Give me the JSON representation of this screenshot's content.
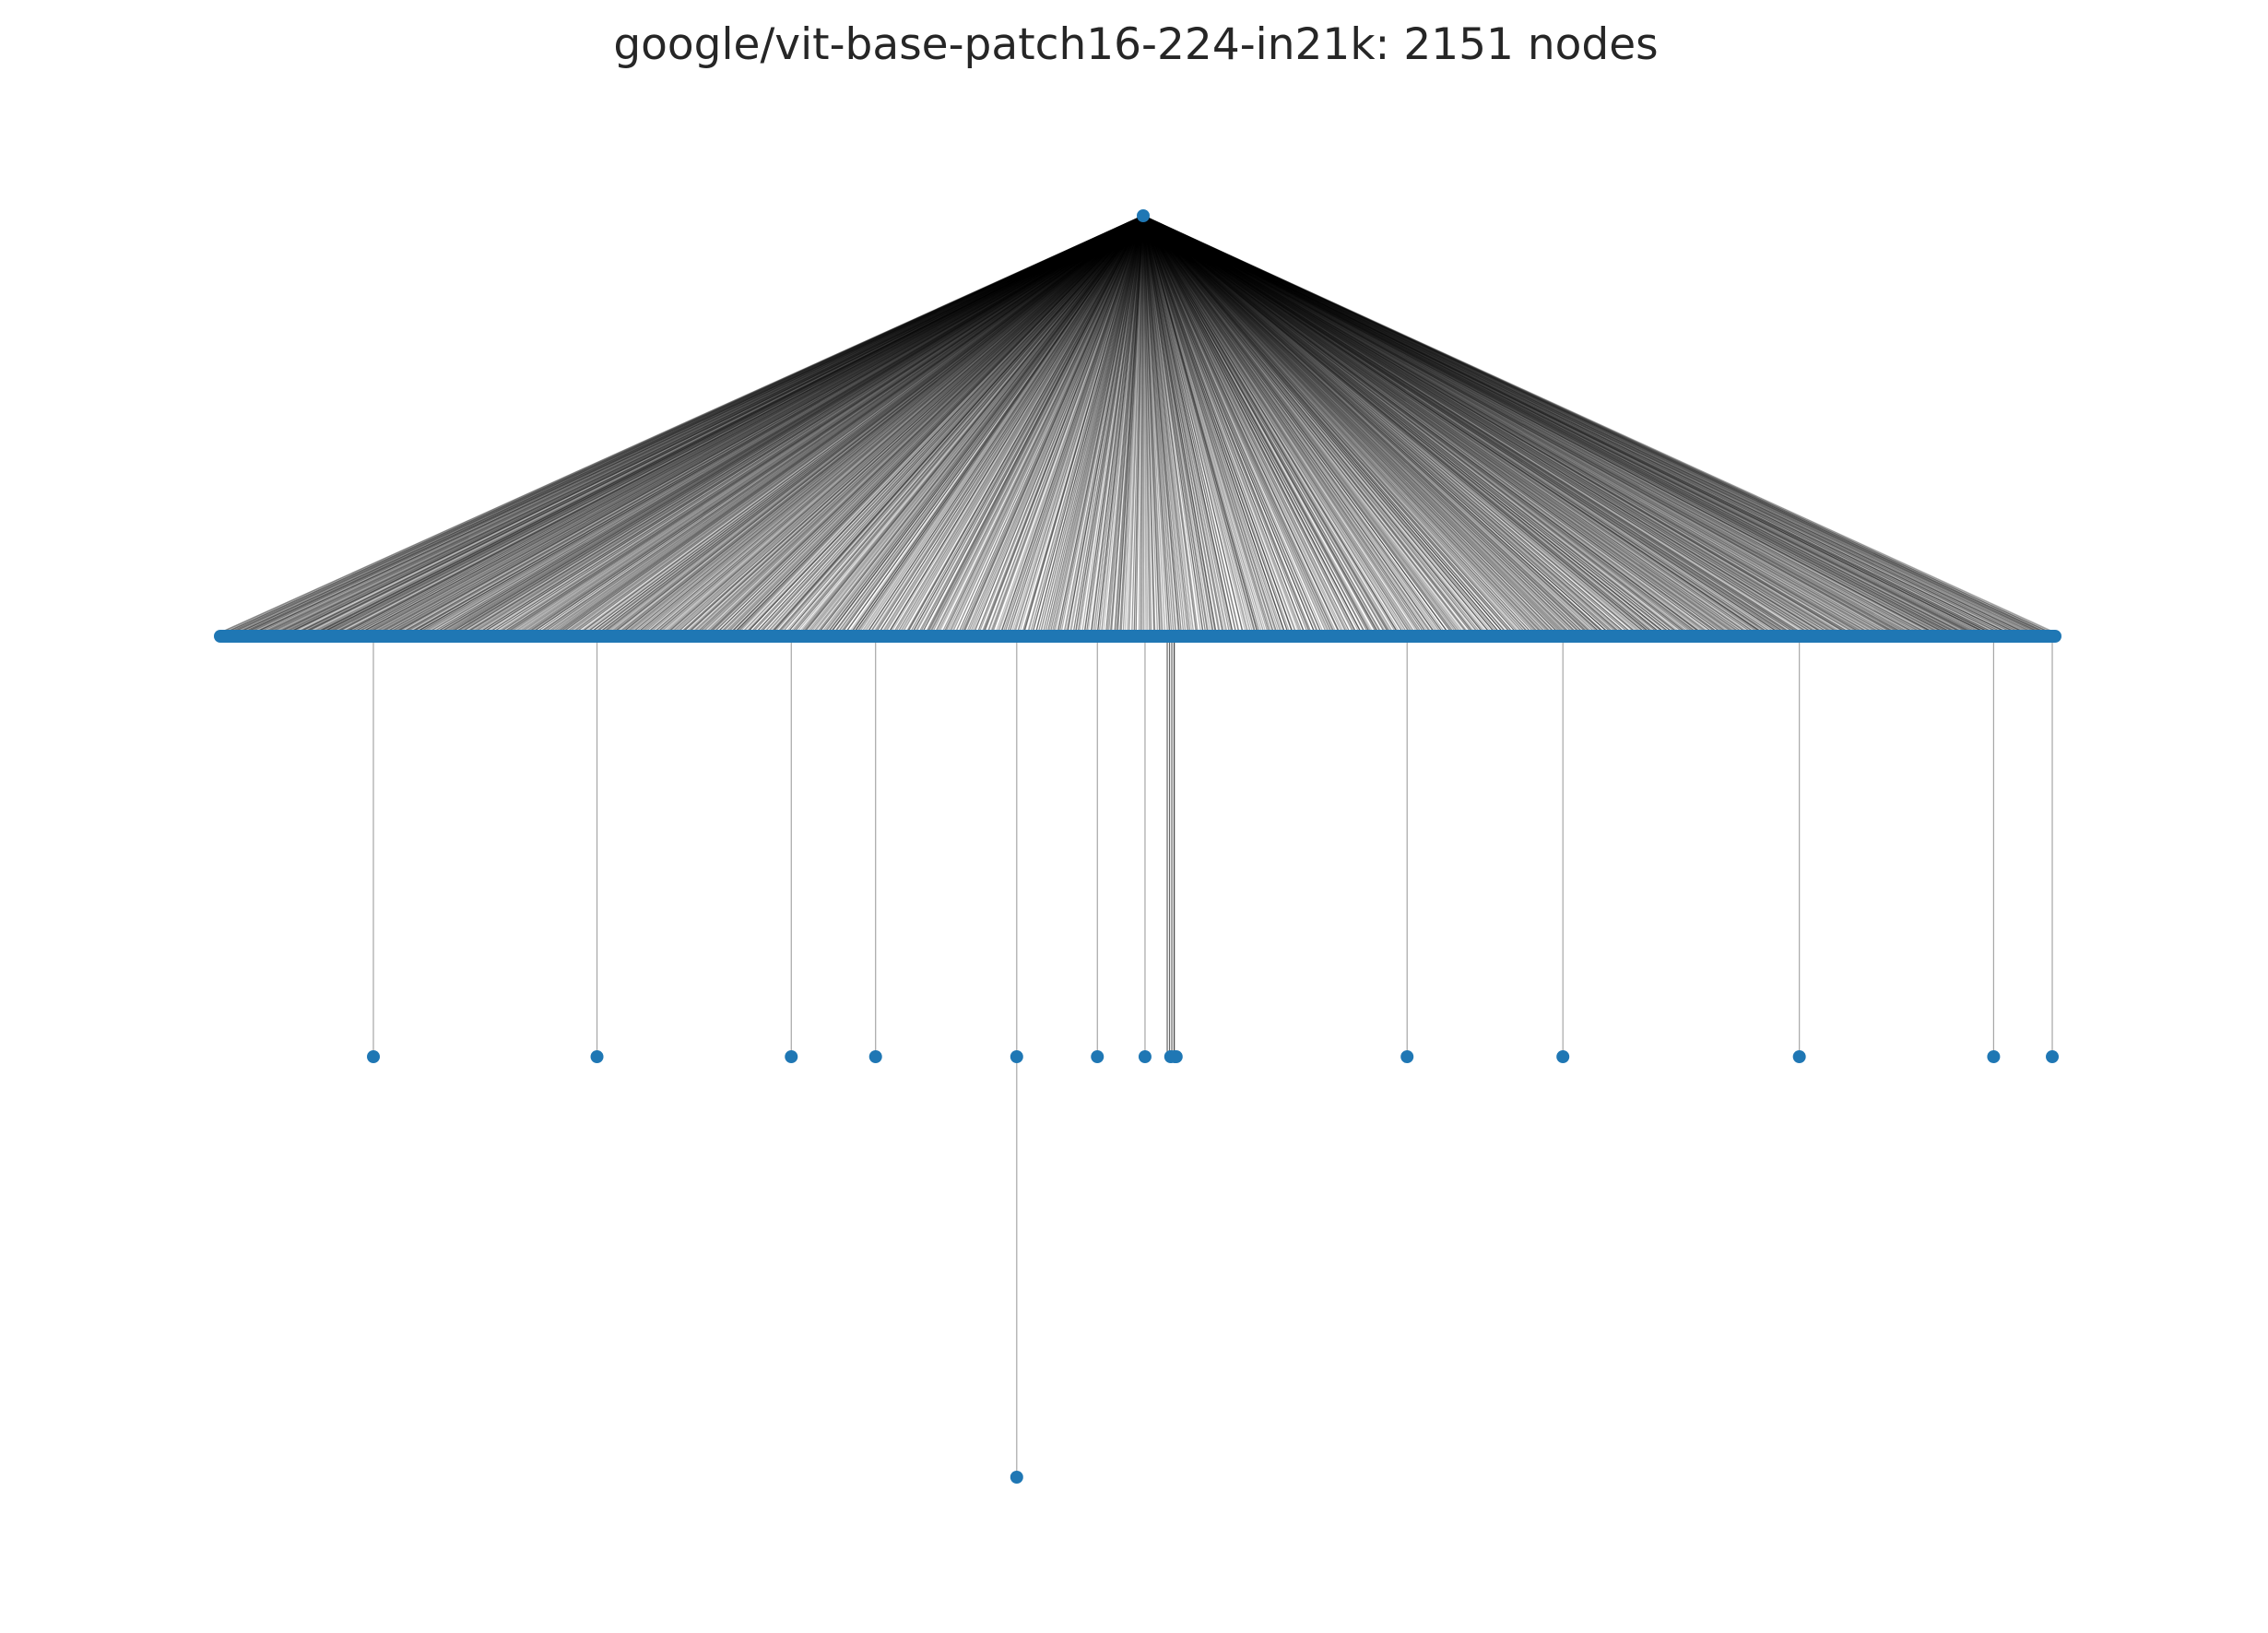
{
  "title": "google/vit-base-patch16-224-in21k: 2151 nodes",
  "graph": {
    "layout": "tree",
    "node_count": 2151,
    "root": {
      "depth": 0
    },
    "level1_fanout_span": [
      0.0,
      1.0
    ],
    "level1_children_with_descendants": [
      {
        "position": 0.083
      },
      {
        "position": 0.205
      },
      {
        "position": 0.311
      },
      {
        "position": 0.357
      },
      {
        "position": 0.434,
        "grandchild": true
      },
      {
        "position": 0.478
      },
      {
        "position": 0.504
      },
      {
        "position": 0.518,
        "multi": true
      },
      {
        "position": 0.52
      },
      {
        "position": 0.647
      },
      {
        "position": 0.732
      },
      {
        "position": 0.861
      },
      {
        "position": 0.967
      },
      {
        "position": 0.999
      }
    ]
  },
  "colors": {
    "node": "#1f77b4",
    "edge": "#000000",
    "background": "#ffffff",
    "title": "#262626"
  }
}
